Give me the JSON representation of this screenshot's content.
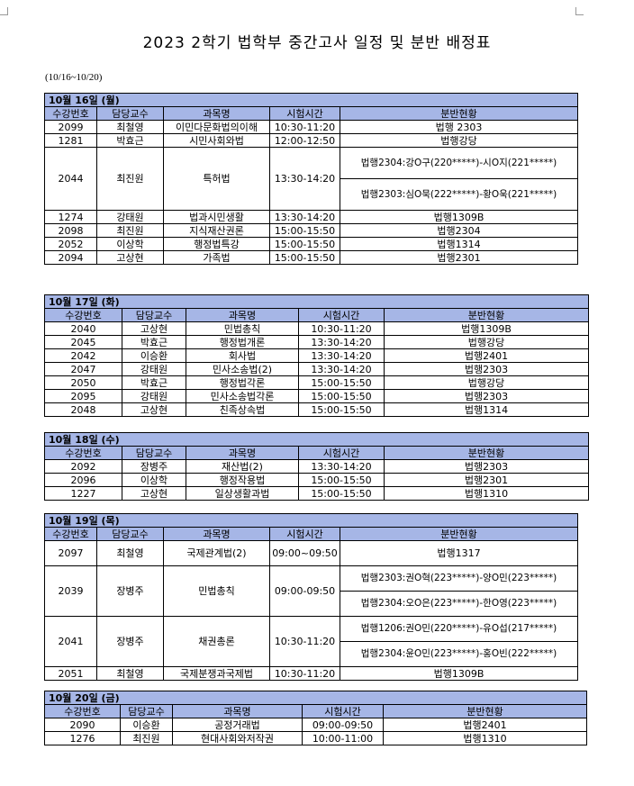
{
  "title": "2023 2학기 법학부 중간고사 일정 및 분반 배정표",
  "date_range": "(10/16~10/20)",
  "header_color": "#a6b6e6",
  "columns": [
    "수강번호",
    "담당교수",
    "과목명",
    "시험시간",
    "분반현황"
  ],
  "days": [
    {
      "label": "10월 16일 (월)",
      "rows": [
        {
          "no": "2099",
          "prof": "최철영",
          "course": "이민다문화법의이해",
          "time": "10:30-11:20",
          "rooms": [
            "법행 2303"
          ]
        },
        {
          "no": "1281",
          "prof": "박효근",
          "course": "시민사회와법",
          "time": "12:00-12:50",
          "rooms": [
            "법행강당"
          ]
        },
        {
          "no": "2044",
          "prof": "최진원",
          "course": "특허법",
          "time": "13:30-14:20",
          "rooms": [
            "법행2304:강O구(220*****)-시O지(221*****)",
            "법행2303:심O묵(222*****)-황O욱(221*****)"
          ]
        },
        {
          "no": "1274",
          "prof": "강태원",
          "course": "법과시민생활",
          "time": "13:30-14:20",
          "rooms": [
            "법행1309B"
          ]
        },
        {
          "no": "2098",
          "prof": "최진원",
          "course": "지식재산권론",
          "time": "15:00-15:50",
          "rooms": [
            "법행2304"
          ]
        },
        {
          "no": "2052",
          "prof": "이상학",
          "course": "행정법특강",
          "time": "15:00-15:50",
          "rooms": [
            "법행1314"
          ]
        },
        {
          "no": "2094",
          "prof": "고상현",
          "course": "가족법",
          "time": "15:00-15:50",
          "rooms": [
            "법행2301"
          ]
        }
      ]
    },
    {
      "label": "10월 17일 (화)",
      "rows": [
        {
          "no": "2040",
          "prof": "고상현",
          "course": "민법총칙",
          "time": "10:30-11:20",
          "rooms": [
            "법행1309B"
          ]
        },
        {
          "no": "2045",
          "prof": "박효근",
          "course": "행정법개론",
          "time": "13:30-14:20",
          "rooms": [
            "법행강당"
          ]
        },
        {
          "no": "2042",
          "prof": "이승환",
          "course": "회사법",
          "time": "13:30-14:20",
          "rooms": [
            "법행2401"
          ]
        },
        {
          "no": "2047",
          "prof": "강태원",
          "course": "민사소송법(2)",
          "time": "13:30-14:20",
          "rooms": [
            "법행2303"
          ]
        },
        {
          "no": "2050",
          "prof": "박효근",
          "course": "행정법각론",
          "time": "15:00-15:50",
          "rooms": [
            "법행강당"
          ]
        },
        {
          "no": "2095",
          "prof": "강태원",
          "course": "민사소송법각론",
          "time": "15:00-15:50",
          "rooms": [
            "법행2303"
          ]
        },
        {
          "no": "2048",
          "prof": "고상현",
          "course": "친족상속법",
          "time": "15:00-15:50",
          "rooms": [
            "법행1314"
          ]
        }
      ]
    },
    {
      "label": "10월 18일 (수)",
      "rows": [
        {
          "no": "2092",
          "prof": "장병주",
          "course": "재산법(2)",
          "time": "13:30-14:20",
          "rooms": [
            "법행2303"
          ]
        },
        {
          "no": "2096",
          "prof": "이상학",
          "course": "행정작용법",
          "time": "15:00-15:50",
          "rooms": [
            "법행2301"
          ]
        },
        {
          "no": "1227",
          "prof": "고상현",
          "course": "일상생활과법",
          "time": "15:00-15:50",
          "rooms": [
            "법행1310"
          ]
        }
      ]
    },
    {
      "label": "10월 19일 (목)",
      "rows": [
        {
          "no": "2097",
          "prof": "최철영",
          "course": "국제관계법(2)",
          "time": "09:00~09:50",
          "rooms": [
            "법행1317"
          ]
        },
        {
          "no": "2039",
          "prof": "장병주",
          "course": "민법총칙",
          "time": "09:00-09:50",
          "rooms": [
            "법행2303:권O혁(223*****)-양O민(223*****)",
            "법행2304:오O은(223*****)-한O영(223*****)"
          ]
        },
        {
          "no": "2041",
          "prof": "장병주",
          "course": "채권총론",
          "time": "10:30-11:20",
          "rooms": [
            "법행1206:권O민(220*****)-유O섭(217*****)",
            "법행2304:윤O민(223*****)-홍O빈(222*****)"
          ]
        },
        {
          "no": "2051",
          "prof": "최철영",
          "course": "국제분쟁과국제법",
          "time": "10:30-11:20",
          "rooms": [
            "법행1309B"
          ]
        }
      ]
    },
    {
      "label": "10월 20일 (금)",
      "rows": [
        {
          "no": "2090",
          "prof": "이승환",
          "course": "공정거래법",
          "time": "09:00-09:50",
          "rooms": [
            "법행2401"
          ]
        },
        {
          "no": "1276",
          "prof": "최진원",
          "course": "현대사회와저작권",
          "time": "10:00-11:00",
          "rooms": [
            "법행1310"
          ]
        }
      ]
    }
  ]
}
